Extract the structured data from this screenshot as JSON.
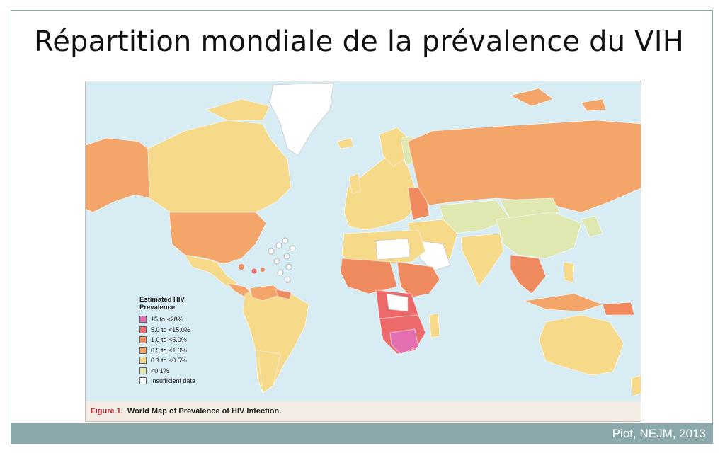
{
  "slide": {
    "title": "Répartition mondiale de la prévalence du VIH",
    "credit": "Piot, NEJM, 2013"
  },
  "figure": {
    "label": "Figure 1.",
    "caption": "World Map of Prevalence of HIV Infection."
  },
  "legend": {
    "title": "Estimated HIV Prevalence",
    "items": [
      {
        "label": "15 to <28%",
        "color": "#e36fb0"
      },
      {
        "label": "5.0 to <15.0%",
        "color": "#ec6a6a"
      },
      {
        "label": "1.0 to <5.0%",
        "color": "#f08a5f"
      },
      {
        "label": "0.5 to <1.0%",
        "color": "#f3a56a"
      },
      {
        "label": "0.1 to <0.5%",
        "color": "#f7d98a"
      },
      {
        "label": "<0.1%",
        "color": "#dfe8b0"
      },
      {
        "label": "Insufficient data",
        "color": "#ffffff"
      }
    ]
  },
  "colors": {
    "ocean": "#d7ecf3",
    "footer": "#8ba9aa"
  }
}
